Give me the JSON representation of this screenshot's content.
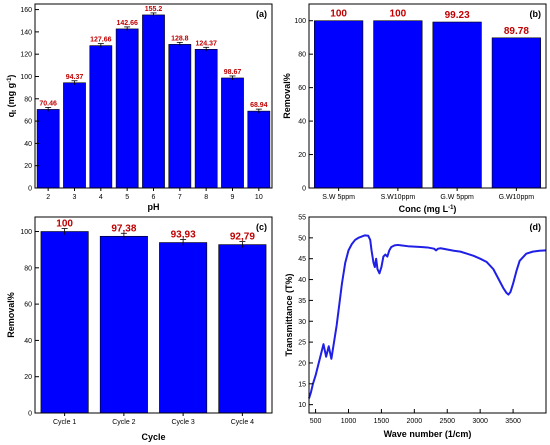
{
  "colors": {
    "bar": "#0000ff",
    "line": "#1f1fe6",
    "data_label": "#c00000",
    "error_bar": "#000000"
  },
  "chart_data": [
    {
      "type": "bar",
      "panel": "(a)",
      "xlabel": "pH",
      "ylabel": "qt (mg g-1)",
      "ylabel_main": "q",
      "ylabel_sub": "t",
      "ylabel_rest": " (mg g",
      "ylabel_sup": "-1",
      "ylabel_end": ")",
      "categories": [
        "2",
        "3",
        "4",
        "5",
        "6",
        "7",
        "8",
        "9",
        "10"
      ],
      "values": [
        70.46,
        94.37,
        127.66,
        142.66,
        155.2,
        128.8,
        124.37,
        98.67,
        68.94
      ],
      "value_labels": [
        "70.46",
        "94.37",
        "127.66",
        "142.66",
        "155.2",
        "128.8",
        "124.37",
        "98.67",
        "68.94"
      ],
      "ylim": [
        0,
        165
      ],
      "yticks": [
        0,
        20,
        40,
        60,
        80,
        100,
        120,
        140,
        160
      ],
      "error_bars": true
    },
    {
      "type": "bar",
      "panel": "(b)",
      "xlabel": "Conc (mg L-1)",
      "xlabel_main": "Conc (mg L",
      "xlabel_sup": "-1",
      "xlabel_end": ")",
      "ylabel": "Removal%",
      "categories": [
        "S.W 5ppm",
        "S.W10ppm",
        "G.W 5ppm",
        "G.W10ppm"
      ],
      "values": [
        100,
        100,
        99.23,
        89.78
      ],
      "value_labels": [
        "100",
        "100",
        "99.23",
        "89.78"
      ],
      "ylim": [
        0,
        110
      ],
      "yticks": [
        0,
        20,
        40,
        60,
        80,
        100
      ],
      "error_bars": false
    },
    {
      "type": "bar",
      "panel": "(c)",
      "xlabel": "Cycle",
      "ylabel": "Removal%",
      "categories": [
        "Cycle 1",
        "Cycle 2",
        "Cycle 3",
        "Cycle 4"
      ],
      "values": [
        100,
        97.38,
        93.93,
        92.79
      ],
      "value_labels": [
        "100",
        "97,38",
        "93,93",
        "92,79"
      ],
      "ylim": [
        0,
        108
      ],
      "yticks": [
        0,
        20,
        40,
        60,
        80,
        100
      ],
      "error_bars": true
    },
    {
      "type": "line",
      "panel": "(d)",
      "xlabel": "Wave number (1/cm)",
      "ylabel": "Transmittance (T%)",
      "xlim": [
        400,
        4000
      ],
      "ylim": [
        8,
        55
      ],
      "xticks": [
        500,
        1000,
        1500,
        2000,
        2500,
        3000,
        3500
      ],
      "yticks": [
        10,
        15,
        20,
        25,
        30,
        35,
        40,
        45,
        50,
        55
      ],
      "series": [
        {
          "x": [
            400,
            430,
            460,
            500,
            540,
            580,
            620,
            640,
            660,
            700,
            740,
            780,
            820,
            860,
            900,
            950,
            1000,
            1050,
            1100,
            1150,
            1200,
            1250,
            1300,
            1330,
            1350,
            1380,
            1400,
            1420,
            1440,
            1470,
            1500,
            1530,
            1560,
            1590,
            1620,
            1650,
            1700,
            1750,
            1800,
            1900,
            2000,
            2100,
            2200,
            2300,
            2330,
            2360,
            2400,
            2500,
            2600,
            2700,
            2800,
            2900,
            3000,
            3100,
            3200,
            3250,
            3300,
            3350,
            3400,
            3430,
            3460,
            3500,
            3550,
            3600,
            3700,
            3800,
            3900,
            4000
          ],
          "y": [
            11.5,
            13,
            15,
            17,
            19.5,
            22,
            24.5,
            23,
            21.5,
            24,
            21,
            25,
            29,
            34,
            39,
            44,
            47,
            48.5,
            49.5,
            50,
            50.3,
            50.6,
            50.5,
            49.5,
            47,
            44,
            43,
            45,
            42.5,
            41.5,
            43,
            45.5,
            46,
            45.5,
            47,
            47.8,
            48.2,
            48.3,
            48.2,
            48,
            47.9,
            47.8,
            47.7,
            47.4,
            47.0,
            47.4,
            47.5,
            47.2,
            46.9,
            46.7,
            46.2,
            45.7,
            45,
            44.2,
            42.5,
            41,
            39.5,
            38,
            36.8,
            36.4,
            37,
            39,
            42,
            44.5,
            46.2,
            46.7,
            46.9,
            47
          ]
        }
      ]
    }
  ]
}
